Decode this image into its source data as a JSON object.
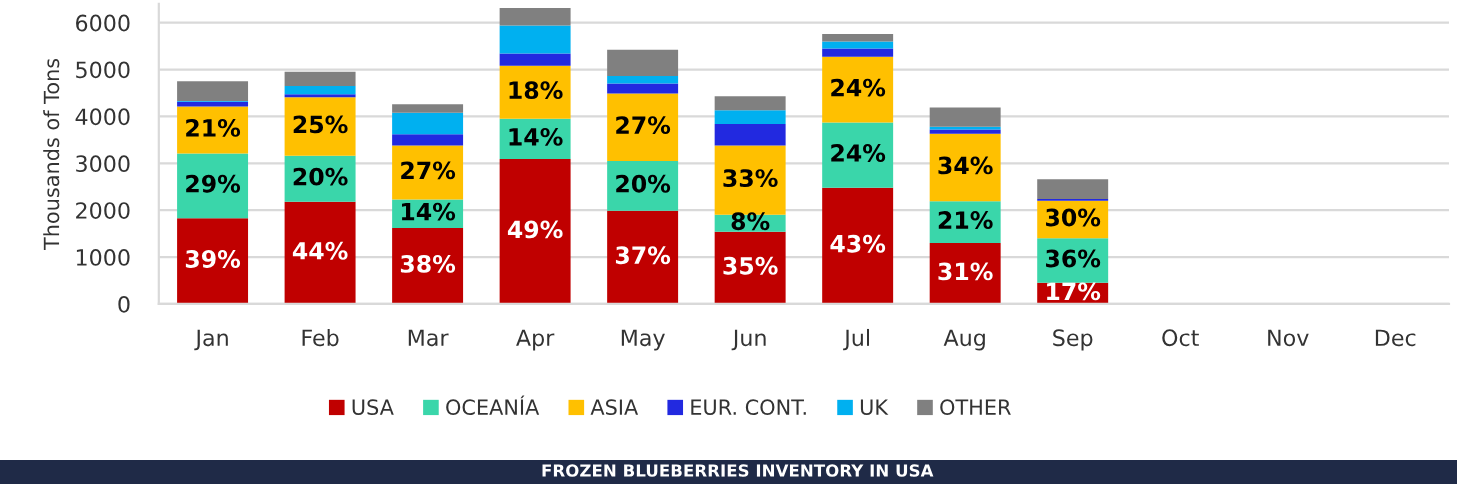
{
  "chart_data": {
    "type": "bar",
    "stacked": true,
    "title": "FROZEN BLUEBERRIES INVENTORY IN USA",
    "ylabel": "Thousands of Tons",
    "categories": [
      "Jan",
      "Feb",
      "Mar",
      "Apr",
      "May",
      "Jun",
      "Jul",
      "Aug",
      "Sep",
      "Oct",
      "Nov",
      "Dec"
    ],
    "ylim": [
      0,
      6400
    ],
    "yticks": [
      0,
      1000,
      2000,
      3000,
      4000,
      5000,
      6000
    ],
    "grid": "y",
    "legend": "bottom",
    "series": [
      {
        "name": "USA",
        "color": "#c00000",
        "values": [
          1830,
          2180,
          1620,
          3090,
          1990,
          1540,
          2480,
          1300,
          450,
          null,
          null,
          null
        ]
      },
      {
        "name": "OCEANÍA",
        "color": "#3ad6aa",
        "values": [
          1380,
          980,
          610,
          860,
          1060,
          360,
          1390,
          890,
          950,
          null,
          null,
          null
        ]
      },
      {
        "name": "ASIA",
        "color": "#ffc000",
        "values": [
          1000,
          1250,
          1150,
          1130,
          1440,
          1480,
          1400,
          1440,
          800,
          null,
          null,
          null
        ]
      },
      {
        "name": "EUR. CONT.",
        "color": "#2229e0",
        "values": [
          100,
          60,
          240,
          260,
          210,
          460,
          180,
          90,
          40,
          null,
          null,
          null
        ]
      },
      {
        "name": "UK",
        "color": "#00b0f0",
        "values": [
          20,
          180,
          460,
          600,
          160,
          290,
          150,
          60,
          0,
          null,
          null,
          null
        ]
      },
      {
        "name": "OTHER",
        "color": "#808080",
        "values": [
          420,
          300,
          180,
          370,
          560,
          300,
          160,
          410,
          420,
          null,
          null,
          null
        ]
      }
    ],
    "annotations": [
      {
        "text": "39%",
        "x": "Jan",
        "y": 1830
      },
      {
        "text": "29%",
        "x": "Jan",
        "y": 3210
      },
      {
        "text": "21%",
        "x": "Jan",
        "y": 4210
      },
      {
        "text": "44%",
        "x": "Feb",
        "y": 2180
      },
      {
        "text": "20%",
        "x": "Feb",
        "y": 3160
      },
      {
        "text": "25%",
        "x": "Feb",
        "y": 4410
      },
      {
        "text": "38%",
        "x": "Mar",
        "y": 1620
      },
      {
        "text": "14%",
        "x": "Mar",
        "y": 2230
      },
      {
        "text": "27%",
        "x": "Mar",
        "y": 3380
      },
      {
        "text": "49%",
        "x": "Apr",
        "y": 3090
      },
      {
        "text": "14%",
        "x": "Apr",
        "y": 3950
      },
      {
        "text": "18%",
        "x": "Apr",
        "y": 5080
      },
      {
        "text": "37%",
        "x": "May",
        "y": 1990
      },
      {
        "text": "20%",
        "x": "May",
        "y": 3050
      },
      {
        "text": "27%",
        "x": "May",
        "y": 4490
      },
      {
        "text": "35%",
        "x": "Jun",
        "y": 1540
      },
      {
        "text": "8%",
        "x": "Jun",
        "y": 1900
      },
      {
        "text": "33%",
        "x": "Jun",
        "y": 3380
      },
      {
        "text": "43%",
        "x": "Jul",
        "y": 2480
      },
      {
        "text": "24%",
        "x": "Jul",
        "y": 3870
      },
      {
        "text": "24%",
        "x": "Jul",
        "y": 5270
      },
      {
        "text": "31%",
        "x": "Aug",
        "y": 1300
      },
      {
        "text": "21%",
        "x": "Aug",
        "y": 2190
      },
      {
        "text": "34%",
        "x": "Aug",
        "y": 3630
      },
      {
        "text": "17%",
        "x": "Sep",
        "y": 450
      },
      {
        "text": "36%",
        "x": "Sep",
        "y": 1400
      },
      {
        "text": "30%",
        "x": "Sep",
        "y": 2200
      }
    ]
  }
}
